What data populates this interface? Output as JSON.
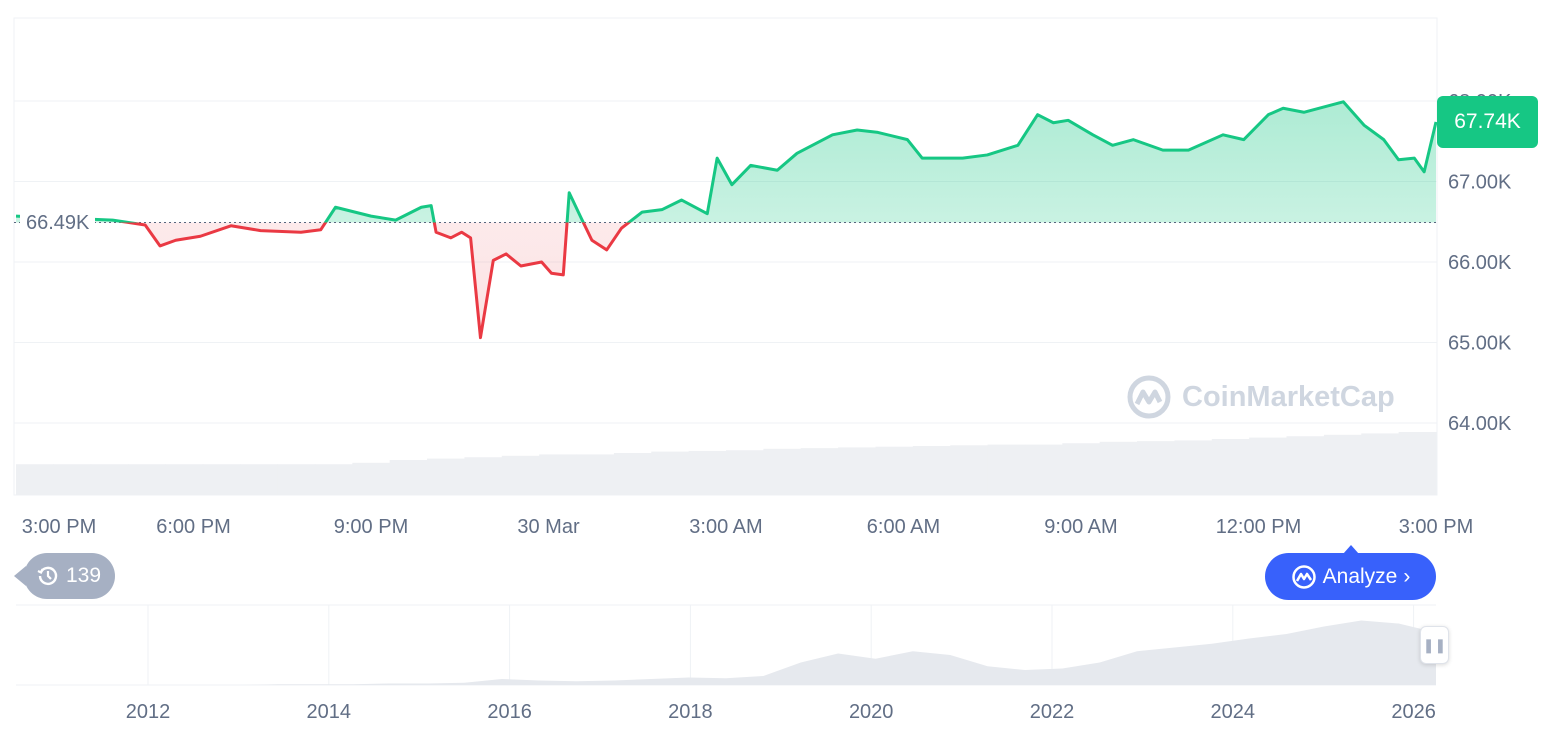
{
  "chart_data": {
    "type": "area",
    "y_ticks": [
      "68.00K",
      "67.00K",
      "66.00K",
      "65.00K",
      "64.00K"
    ],
    "y_tick_values": [
      68,
      67,
      66,
      65,
      64
    ],
    "x_ticks": [
      "3:00 PM",
      "6:00 PM",
      "9:00 PM",
      "30 Mar",
      "3:00 AM",
      "6:00 AM",
      "9:00 AM",
      "12:00 PM",
      "3:00 PM"
    ],
    "ylim": [
      63.0,
      69.0
    ],
    "unit": "K",
    "baseline": {
      "value": 66.49,
      "label": "66.49K"
    },
    "current_price": {
      "value": 67.74,
      "label": "67.74K"
    },
    "colors": {
      "up": "#16c784",
      "down": "#ea3943",
      "grid": "#eff2f5"
    },
    "grid": true,
    "series": [
      [
        "29 15:00",
        66.57
      ],
      [
        "29 16:38",
        66.52
      ],
      [
        "29 17:11",
        66.46
      ],
      [
        "29 17:26",
        66.2
      ],
      [
        "29 17:42",
        66.27
      ],
      [
        "29 18:07",
        66.32
      ],
      [
        "29 18:38",
        66.45
      ],
      [
        "29 19:08",
        66.39
      ],
      [
        "29 19:49",
        66.37
      ],
      [
        "29 20:09",
        66.4
      ],
      [
        "29 20:24",
        66.68
      ],
      [
        "29 21:00",
        66.57
      ],
      [
        "29 21:25",
        66.52
      ],
      [
        "29 21:51",
        66.68
      ],
      [
        "29 22:01",
        66.7
      ],
      [
        "29 22:06",
        66.37
      ],
      [
        "29 22:21",
        66.3
      ],
      [
        "29 22:32",
        66.37
      ],
      [
        "29 22:41",
        66.3
      ],
      [
        "29 22:51",
        65.06
      ],
      [
        "29 23:04",
        66.02
      ],
      [
        "29 23:17",
        66.1
      ],
      [
        "29 23:32",
        65.95
      ],
      [
        "29 23:53",
        66.0
      ],
      [
        "30 00:03",
        65.86
      ],
      [
        "30 00:15",
        65.84
      ],
      [
        "30 00:21",
        66.86
      ],
      [
        "30 00:33",
        66.55
      ],
      [
        "30 00:44",
        66.27
      ],
      [
        "30 00:59",
        66.15
      ],
      [
        "30 01:14",
        66.42
      ],
      [
        "30 01:35",
        66.62
      ],
      [
        "30 01:55",
        66.65
      ],
      [
        "30 02:15",
        66.77
      ],
      [
        "30 02:41",
        66.6
      ],
      [
        "30 02:51",
        67.29
      ],
      [
        "30 03:06",
        66.96
      ],
      [
        "30 03:25",
        67.2
      ],
      [
        "30 03:52",
        67.14
      ],
      [
        "30 04:12",
        67.35
      ],
      [
        "30 04:48",
        67.58
      ],
      [
        "30 05:13",
        67.64
      ],
      [
        "30 05:34",
        67.61
      ],
      [
        "30 06:04",
        67.52
      ],
      [
        "30 06:19",
        67.29
      ],
      [
        "30 07:00",
        67.29
      ],
      [
        "30 07:25",
        67.33
      ],
      [
        "30 07:56",
        67.45
      ],
      [
        "30 08:16",
        67.83
      ],
      [
        "30 08:32",
        67.73
      ],
      [
        "30 08:47",
        67.76
      ],
      [
        "30 09:12",
        67.58
      ],
      [
        "30 09:32",
        67.45
      ],
      [
        "30 09:53",
        67.52
      ],
      [
        "30 10:23",
        67.39
      ],
      [
        "30 10:49",
        67.39
      ],
      [
        "30 11:24",
        67.58
      ],
      [
        "30 11:45",
        67.52
      ],
      [
        "30 12:10",
        67.83
      ],
      [
        "30 12:25",
        67.91
      ],
      [
        "30 12:46",
        67.86
      ],
      [
        "30 13:26",
        67.99
      ],
      [
        "30 13:47",
        67.7
      ],
      [
        "30 14:07",
        67.52
      ],
      [
        "30 14:22",
        67.27
      ],
      [
        "30 14:38",
        67.29
      ],
      [
        "30 14:48",
        67.12
      ],
      [
        "30 15:00",
        67.74
      ]
    ],
    "volume_relative": [
      0.44,
      0.44,
      0.44,
      0.44,
      0.44,
      0.44,
      0.44,
      0.44,
      0.44,
      0.46,
      0.5,
      0.52,
      0.54,
      0.56,
      0.58,
      0.58,
      0.6,
      0.62,
      0.63,
      0.64,
      0.66,
      0.67,
      0.68,
      0.69,
      0.7,
      0.71,
      0.72,
      0.72,
      0.74,
      0.76,
      0.77,
      0.78,
      0.8,
      0.82,
      0.84,
      0.86,
      0.88,
      0.9
    ],
    "navigator": {
      "x_ticks": [
        "2012",
        "2014",
        "2016",
        "2018",
        "2020",
        "2022",
        "2024",
        "2026"
      ],
      "relative_values": [
        0,
        0,
        0,
        0,
        0,
        0,
        0,
        0.01,
        0.01,
        0.01,
        0.02,
        0.02,
        0.03,
        0.08,
        0.06,
        0.05,
        0.06,
        0.08,
        0.1,
        0.09,
        0.12,
        0.3,
        0.42,
        0.35,
        0.45,
        0.4,
        0.25,
        0.2,
        0.22,
        0.3,
        0.45,
        0.5,
        0.55,
        0.62,
        0.68,
        0.78,
        0.86,
        0.82,
        0.7
      ]
    }
  },
  "ui": {
    "history_count": "139",
    "analyze_label": "Analyze",
    "watermark": "CoinMarketCap"
  }
}
